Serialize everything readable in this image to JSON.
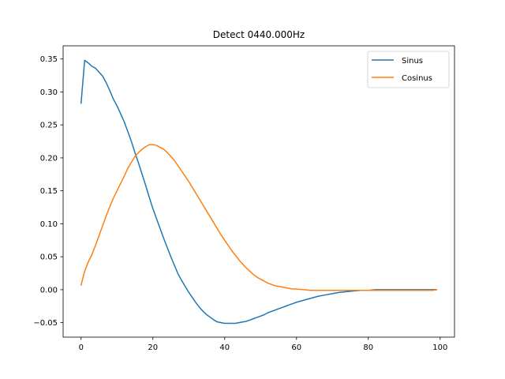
{
  "chart_data": {
    "type": "line",
    "title": "Detect 0440.000Hz",
    "xlabel": "",
    "ylabel": "",
    "xlim": [
      -5,
      104
    ],
    "ylim": [
      -0.072,
      0.37
    ],
    "xticks": [
      0,
      20,
      40,
      60,
      80,
      100
    ],
    "xtick_labels": [
      "0",
      "20",
      "40",
      "60",
      "80",
      "100"
    ],
    "yticks": [
      -0.05,
      0.0,
      0.05,
      0.1,
      0.15,
      0.2,
      0.25,
      0.3,
      0.35
    ],
    "ytick_labels": [
      "−0.05",
      "0.00",
      "0.05",
      "0.10",
      "0.15",
      "0.20",
      "0.25",
      "0.30",
      "0.35"
    ],
    "grid": false,
    "legend_position": "top-right",
    "series": [
      {
        "name": "Sinus",
        "color": "#1f77b4",
        "x": [
          0,
          1,
          2,
          3,
          4,
          5,
          6,
          7,
          8,
          9,
          10,
          11,
          12,
          13,
          14,
          15,
          16,
          17,
          18,
          19,
          20,
          21,
          22,
          23,
          24,
          25,
          26,
          27,
          28,
          29,
          30,
          31,
          32,
          33,
          34,
          35,
          36,
          37,
          38,
          39,
          40,
          41,
          42,
          43,
          44,
          45,
          46,
          47,
          48,
          49,
          50,
          51,
          52,
          53,
          54,
          55,
          56,
          57,
          58,
          59,
          60,
          62,
          64,
          66,
          68,
          70,
          72,
          74,
          76,
          78,
          80,
          82,
          84,
          86,
          88,
          90,
          92,
          94,
          96,
          98,
          99
        ],
        "y": [
          0.283,
          0.348,
          0.344,
          0.339,
          0.336,
          0.33,
          0.324,
          0.314,
          0.302,
          0.289,
          0.279,
          0.267,
          0.255,
          0.24,
          0.225,
          0.208,
          0.192,
          0.175,
          0.158,
          0.14,
          0.123,
          0.108,
          0.093,
          0.078,
          0.064,
          0.05,
          0.037,
          0.024,
          0.014,
          0.005,
          -0.004,
          -0.012,
          -0.02,
          -0.027,
          -0.033,
          -0.038,
          -0.042,
          -0.046,
          -0.049,
          -0.05,
          -0.051,
          -0.051,
          -0.051,
          -0.051,
          -0.05,
          -0.049,
          -0.048,
          -0.046,
          -0.044,
          -0.042,
          -0.04,
          -0.038,
          -0.035,
          -0.033,
          -0.031,
          -0.029,
          -0.027,
          -0.025,
          -0.023,
          -0.021,
          -0.019,
          -0.016,
          -0.013,
          -0.01,
          -0.008,
          -0.006,
          -0.004,
          -0.003,
          -0.002,
          -0.001,
          -0.001,
          0.0,
          0.0,
          0.0,
          0.0,
          0.0,
          0.0,
          0.0,
          0.0,
          0.0,
          0.0
        ]
      },
      {
        "name": "Cosinus",
        "color": "#ff7f0e",
        "x": [
          0,
          1,
          2,
          3,
          4,
          5,
          6,
          7,
          8,
          9,
          10,
          11,
          12,
          13,
          14,
          15,
          16,
          17,
          18,
          19,
          20,
          21,
          22,
          23,
          24,
          25,
          26,
          27,
          28,
          29,
          30,
          31,
          32,
          33,
          34,
          35,
          36,
          37,
          38,
          39,
          40,
          41,
          42,
          43,
          44,
          45,
          46,
          47,
          48,
          49,
          50,
          51,
          52,
          53,
          54,
          55,
          56,
          57,
          58,
          59,
          60,
          62,
          64,
          66,
          68,
          70,
          72,
          74,
          76,
          78,
          80,
          82,
          84,
          86,
          88,
          90,
          92,
          94,
          96,
          98,
          99
        ],
        "y": [
          0.007,
          0.028,
          0.042,
          0.053,
          0.067,
          0.082,
          0.097,
          0.112,
          0.126,
          0.139,
          0.15,
          0.161,
          0.172,
          0.184,
          0.193,
          0.202,
          0.208,
          0.213,
          0.217,
          0.22,
          0.22,
          0.219,
          0.216,
          0.213,
          0.208,
          0.202,
          0.196,
          0.188,
          0.18,
          0.172,
          0.164,
          0.155,
          0.146,
          0.137,
          0.128,
          0.119,
          0.11,
          0.101,
          0.092,
          0.083,
          0.075,
          0.067,
          0.059,
          0.052,
          0.045,
          0.039,
          0.033,
          0.028,
          0.023,
          0.019,
          0.016,
          0.013,
          0.01,
          0.008,
          0.006,
          0.005,
          0.004,
          0.003,
          0.002,
          0.001,
          0.001,
          0.0,
          -0.001,
          -0.001,
          -0.001,
          -0.001,
          -0.001,
          -0.001,
          -0.001,
          -0.001,
          -0.001,
          -0.001,
          -0.001,
          -0.001,
          -0.001,
          -0.001,
          -0.001,
          -0.001,
          -0.001,
          -0.001,
          0.0
        ]
      }
    ]
  }
}
